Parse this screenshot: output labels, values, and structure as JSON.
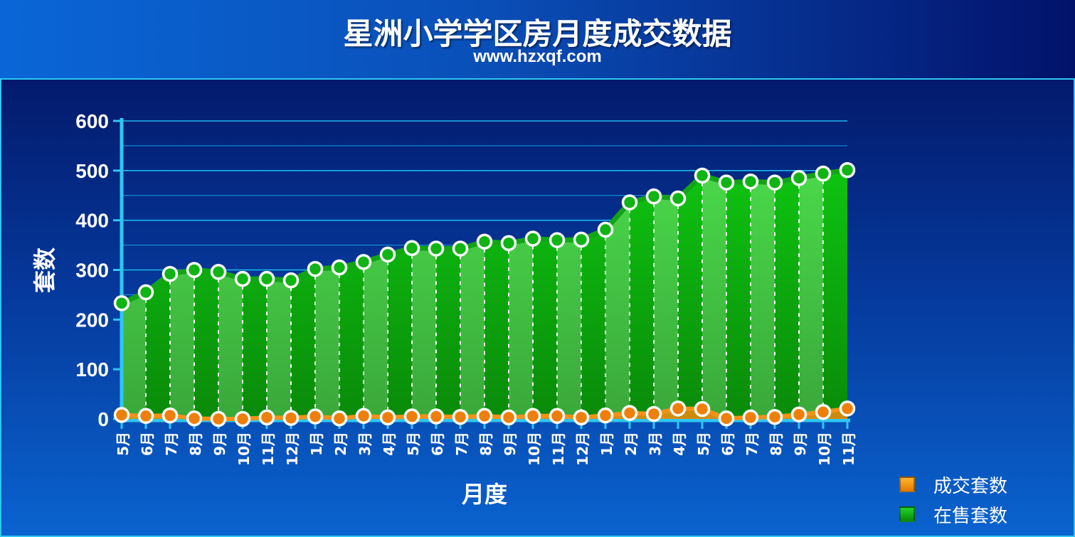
{
  "header": {
    "title": "星洲小学学区房月度成交数据",
    "subtitle": "www.hzxqf.com"
  },
  "chart_data": {
    "type": "area",
    "title": "星洲小学学区房月度成交数据",
    "subtitle": "www.hzxqf.com",
    "xlabel": "月度",
    "ylabel": "套数",
    "ylim": [
      0,
      600
    ],
    "yticks": [
      0,
      100,
      200,
      300,
      400,
      500,
      600
    ],
    "grid": true,
    "legend_position": "right",
    "categories": [
      "5月",
      "6月",
      "7月",
      "8月",
      "9月",
      "10月",
      "11月",
      "12月",
      "1月",
      "2月",
      "3月",
      "4月",
      "5月",
      "6月",
      "7月",
      "8月",
      "9月",
      "10月",
      "11月",
      "12月",
      "1月",
      "2月",
      "3月",
      "4月",
      "5月",
      "6月",
      "7月",
      "8月",
      "9月",
      "10月",
      "11月"
    ],
    "series": [
      {
        "name": "在售套数",
        "color": "#22c22a",
        "values": [
          233,
          255,
          292,
          300,
          296,
          282,
          282,
          279,
          302,
          305,
          316,
          331,
          344,
          343,
          343,
          357,
          354,
          363,
          360,
          361,
          381,
          436,
          448,
          444,
          490,
          476,
          478,
          476,
          485,
          494,
          501
        ]
      },
      {
        "name": "成交套数",
        "color": "#f08a0c",
        "values": [
          8,
          6,
          7,
          1,
          0,
          0,
          3,
          2,
          5,
          1,
          6,
          3,
          5,
          5,
          4,
          6,
          3,
          6,
          6,
          3,
          7,
          12,
          10,
          21,
          20,
          1,
          3,
          4,
          9,
          14,
          21
        ]
      }
    ]
  }
}
